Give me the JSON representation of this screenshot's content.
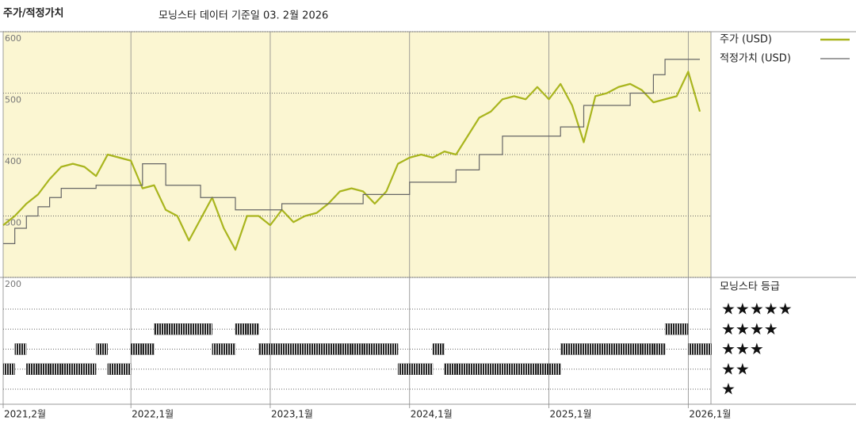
{
  "chart_data": {
    "type": "line",
    "title": "주가/적정가치",
    "subtitle": "모닝스타 데이터 기준일 03. 2월 2026",
    "x": [
      "2021-02",
      "2021-03",
      "2021-04",
      "2021-05",
      "2021-06",
      "2021-07",
      "2021-08",
      "2021-09",
      "2021-10",
      "2021-11",
      "2021-12",
      "2022-01",
      "2022-02",
      "2022-03",
      "2022-04",
      "2022-05",
      "2022-06",
      "2022-07",
      "2022-08",
      "2022-09",
      "2022-10",
      "2022-11",
      "2022-12",
      "2023-01",
      "2023-02",
      "2023-03",
      "2023-04",
      "2023-05",
      "2023-06",
      "2023-07",
      "2023-08",
      "2023-09",
      "2023-10",
      "2023-11",
      "2023-12",
      "2024-01",
      "2024-02",
      "2024-03",
      "2024-04",
      "2024-05",
      "2024-06",
      "2024-07",
      "2024-08",
      "2024-09",
      "2024-10",
      "2024-11",
      "2024-12",
      "2025-01",
      "2025-02",
      "2025-03",
      "2025-04",
      "2025-05",
      "2025-06",
      "2025-07",
      "2025-08",
      "2025-09",
      "2025-10",
      "2025-11",
      "2025-12",
      "2026-01",
      "2026-02"
    ],
    "series": [
      {
        "name": "주가 (USD)",
        "color": "#a9b51e",
        "style": "line",
        "values": [
          285,
          300,
          320,
          335,
          360,
          380,
          385,
          380,
          365,
          400,
          395,
          390,
          345,
          350,
          310,
          300,
          260,
          295,
          330,
          280,
          245,
          300,
          300,
          285,
          310,
          290,
          300,
          305,
          320,
          340,
          345,
          340,
          320,
          340,
          385,
          395,
          400,
          395,
          405,
          400,
          430,
          460,
          470,
          490,
          495,
          490,
          510,
          490,
          515,
          480,
          420,
          495,
          500,
          510,
          515,
          505,
          485,
          490,
          495,
          535,
          470
        ]
      },
      {
        "name": "적정가치 (USD)",
        "color": "#666666",
        "style": "step",
        "values": [
          255,
          280,
          300,
          315,
          330,
          345,
          345,
          345,
          350,
          350,
          350,
          350,
          385,
          385,
          350,
          350,
          350,
          330,
          330,
          330,
          310,
          310,
          310,
          310,
          320,
          320,
          320,
          320,
          320,
          320,
          320,
          335,
          335,
          335,
          335,
          355,
          355,
          355,
          355,
          375,
          375,
          400,
          400,
          430,
          430,
          430,
          430,
          430,
          445,
          445,
          480,
          480,
          480,
          480,
          500,
          500,
          530,
          555,
          555,
          555,
          555
        ]
      }
    ],
    "ylim": [
      200,
      600
    ],
    "yticks": [
      200,
      300,
      400,
      500,
      600
    ],
    "xticks": [
      {
        "value": "2021-02",
        "label": "2021,2월"
      },
      {
        "value": "2022-01",
        "label": "2022,1월"
      },
      {
        "value": "2023-01",
        "label": "2023,1월"
      },
      {
        "value": "2024-01",
        "label": "2024,1월"
      },
      {
        "value": "2025-01",
        "label": "2025,1월"
      },
      {
        "value": "2026-01",
        "label": "2026,1월"
      }
    ],
    "grid": true,
    "background": "#fbf6d2",
    "rating": {
      "title": "모닝스타 등급",
      "levels": [
        5,
        4,
        3,
        2,
        1
      ],
      "level_labels": [
        "★★★★★",
        "★★★★",
        "★★★",
        "★★",
        "★"
      ],
      "color": "#333333",
      "values": [
        2,
        3,
        2,
        2,
        2,
        2,
        2,
        2,
        3,
        2,
        2,
        3,
        3,
        4,
        4,
        4,
        4,
        4,
        3,
        3,
        4,
        4,
        3,
        3,
        3,
        3,
        3,
        3,
        3,
        3,
        3,
        3,
        3,
        3,
        2,
        2,
        2,
        3,
        2,
        2,
        2,
        2,
        2,
        2,
        2,
        2,
        2,
        2,
        3,
        3,
        3,
        3,
        3,
        3,
        3,
        3,
        3,
        4,
        4,
        3,
        3
      ]
    }
  }
}
